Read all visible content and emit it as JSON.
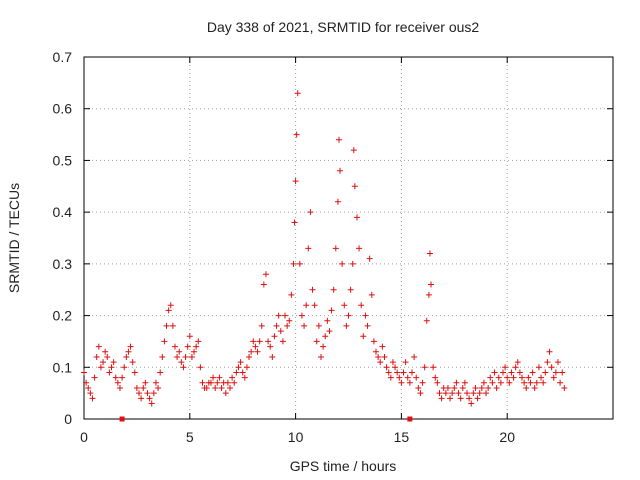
{
  "chart_data": {
    "type": "scatter",
    "title": "Day 338 of 2021, SRMTID for receiver ous2",
    "xlabel": "GPS time / hours",
    "ylabel": "SRMTID / TECUs",
    "xlim": [
      0,
      25
    ],
    "ylim": [
      0,
      0.7
    ],
    "xticks": [
      0,
      5,
      10,
      15,
      20
    ],
    "xtick_labels": [
      "0",
      "5",
      "10",
      "15",
      "20"
    ],
    "yticks": [
      0,
      0.1,
      0.2,
      0.3,
      0.4,
      0.5,
      0.6,
      0.7
    ],
    "ytick_labels": [
      "0",
      "0.1",
      "0.2",
      "0.3",
      "0.4",
      "0.5",
      "0.6",
      "0.7"
    ],
    "grid": true,
    "marker": "+",
    "color": "#dd1111",
    "series": [
      {
        "name": "SRMTID",
        "x": [
          0.0,
          0.1,
          0.2,
          0.3,
          0.4,
          0.5,
          0.6,
          0.7,
          0.8,
          0.9,
          1.0,
          1.1,
          1.2,
          1.3,
          1.4,
          1.5,
          1.6,
          1.7,
          1.8,
          1.9,
          2.0,
          2.1,
          2.2,
          2.3,
          2.4,
          2.5,
          2.6,
          2.7,
          2.8,
          2.9,
          3.0,
          3.1,
          3.2,
          3.3,
          3.4,
          3.5,
          3.6,
          3.7,
          3.8,
          3.9,
          4.0,
          4.1,
          4.2,
          4.3,
          4.4,
          4.5,
          4.6,
          4.7,
          4.8,
          4.9,
          5.0,
          5.1,
          5.2,
          5.3,
          5.4,
          5.5,
          5.6,
          5.7,
          5.8,
          5.9,
          6.0,
          6.1,
          6.2,
          6.3,
          6.4,
          6.5,
          6.6,
          6.7,
          6.8,
          6.9,
          7.0,
          7.1,
          7.2,
          7.3,
          7.4,
          7.5,
          7.6,
          7.7,
          7.8,
          7.9,
          8.0,
          8.1,
          8.2,
          8.3,
          8.4,
          8.5,
          8.6,
          8.7,
          8.8,
          8.9,
          9.0,
          9.1,
          9.2,
          9.3,
          9.4,
          9.5,
          9.6,
          9.7,
          9.8,
          9.9,
          9.95,
          10.0,
          10.05,
          10.1,
          10.2,
          10.3,
          10.4,
          10.5,
          10.6,
          10.7,
          10.8,
          10.9,
          11.0,
          11.1,
          11.2,
          11.3,
          11.4,
          11.5,
          11.6,
          11.7,
          11.8,
          11.9,
          12.0,
          12.05,
          12.1,
          12.2,
          12.3,
          12.4,
          12.5,
          12.6,
          12.7,
          12.75,
          12.8,
          12.9,
          13.0,
          13.1,
          13.2,
          13.3,
          13.4,
          13.5,
          13.6,
          13.7,
          13.8,
          13.9,
          14.0,
          14.1,
          14.2,
          14.3,
          14.4,
          14.5,
          14.6,
          14.7,
          14.8,
          14.9,
          15.0,
          15.1,
          15.2,
          15.3,
          15.4,
          15.5,
          15.6,
          15.7,
          15.8,
          15.9,
          16.0,
          16.1,
          16.2,
          16.3,
          16.35,
          16.4,
          16.5,
          16.6,
          16.7,
          16.8,
          16.9,
          17.0,
          17.1,
          17.2,
          17.3,
          17.4,
          17.5,
          17.6,
          17.7,
          17.8,
          17.9,
          18.0,
          18.1,
          18.2,
          18.3,
          18.4,
          18.5,
          18.6,
          18.7,
          18.8,
          18.9,
          19.0,
          19.1,
          19.2,
          19.3,
          19.4,
          19.5,
          19.6,
          19.7,
          19.8,
          19.9,
          20.0,
          20.1,
          20.2,
          20.3,
          20.4,
          20.5,
          20.6,
          20.7,
          20.8,
          20.9,
          21.0,
          21.1,
          21.2,
          21.3,
          21.4,
          21.5,
          21.6,
          21.7,
          21.8,
          21.9,
          22.0,
          22.1,
          22.2,
          22.3,
          22.4,
          22.5,
          22.6,
          22.7
        ],
        "y": [
          0.09,
          0.07,
          0.06,
          0.05,
          0.04,
          0.08,
          0.12,
          0.14,
          0.1,
          0.11,
          0.13,
          0.12,
          0.09,
          0.1,
          0.11,
          0.08,
          0.07,
          0.06,
          0.08,
          0.1,
          0.12,
          0.13,
          0.14,
          0.11,
          0.09,
          0.06,
          0.05,
          0.04,
          0.06,
          0.07,
          0.05,
          0.04,
          0.03,
          0.05,
          0.07,
          0.06,
          0.09,
          0.12,
          0.15,
          0.18,
          0.21,
          0.22,
          0.18,
          0.14,
          0.12,
          0.13,
          0.11,
          0.1,
          0.12,
          0.14,
          0.16,
          0.12,
          0.13,
          0.14,
          0.15,
          0.1,
          0.07,
          0.06,
          0.06,
          0.07,
          0.07,
          0.08,
          0.06,
          0.07,
          0.08,
          0.06,
          0.07,
          0.05,
          0.07,
          0.06,
          0.08,
          0.07,
          0.09,
          0.1,
          0.11,
          0.09,
          0.08,
          0.1,
          0.12,
          0.13,
          0.15,
          0.14,
          0.13,
          0.15,
          0.18,
          0.26,
          0.28,
          0.15,
          0.14,
          0.12,
          0.16,
          0.18,
          0.2,
          0.17,
          0.15,
          0.2,
          0.18,
          0.19,
          0.24,
          0.3,
          0.38,
          0.46,
          0.55,
          0.63,
          0.3,
          0.2,
          0.18,
          0.22,
          0.33,
          0.4,
          0.25,
          0.22,
          0.15,
          0.18,
          0.12,
          0.14,
          0.16,
          0.19,
          0.17,
          0.21,
          0.25,
          0.33,
          0.42,
          0.54,
          0.48,
          0.3,
          0.22,
          0.18,
          0.2,
          0.25,
          0.3,
          0.52,
          0.45,
          0.39,
          0.33,
          0.22,
          0.16,
          0.2,
          0.18,
          0.31,
          0.24,
          0.15,
          0.13,
          0.12,
          0.11,
          0.14,
          0.12,
          0.1,
          0.09,
          0.08,
          0.11,
          0.1,
          0.09,
          0.08,
          0.07,
          0.09,
          0.11,
          0.08,
          0.07,
          0.09,
          0.12,
          0.08,
          0.06,
          0.05,
          0.07,
          0.1,
          0.19,
          0.24,
          0.32,
          0.26,
          0.1,
          0.08,
          0.07,
          0.05,
          0.04,
          0.06,
          0.05,
          0.06,
          0.04,
          0.05,
          0.06,
          0.07,
          0.05,
          0.04,
          0.06,
          0.07,
          0.05,
          0.04,
          0.03,
          0.05,
          0.06,
          0.04,
          0.05,
          0.06,
          0.07,
          0.05,
          0.06,
          0.08,
          0.07,
          0.09,
          0.06,
          0.08,
          0.07,
          0.09,
          0.1,
          0.08,
          0.07,
          0.09,
          0.08,
          0.1,
          0.11,
          0.09,
          0.08,
          0.07,
          0.06,
          0.08,
          0.07,
          0.09,
          0.06,
          0.07,
          0.1,
          0.08,
          0.07,
          0.09,
          0.11,
          0.13,
          0.1,
          0.08,
          0.09,
          0.11,
          0.07,
          0.09,
          0.06
        ]
      }
    ],
    "gap_markers_x": [
      1.8,
      15.4
    ]
  }
}
